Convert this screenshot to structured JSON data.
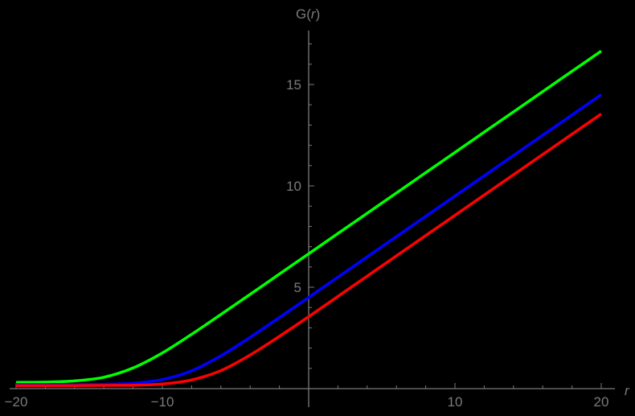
{
  "chart_data": {
    "type": "line",
    "title": "",
    "xlabel": "r",
    "ylabel": "G(r)",
    "xlim": [
      -20,
      20
    ],
    "ylim": [
      0,
      17.5
    ],
    "grid": false,
    "legend": null,
    "x_ticks": [
      -20,
      -10,
      10,
      20
    ],
    "x_tick_labels": [
      "−20",
      "−10",
      "10",
      "20"
    ],
    "y_ticks": [
      5,
      10,
      15
    ],
    "y_tick_labels": [
      "5",
      "10",
      "15"
    ],
    "x": [
      -20,
      -18,
      -16,
      -14,
      -12,
      -10,
      -8,
      -6,
      -4,
      -2,
      0,
      2,
      4,
      6,
      8,
      10,
      12,
      14,
      16,
      18,
      20
    ],
    "series": [
      {
        "name": "green",
        "color": "#00ff00",
        "values": [
          0.31,
          0.32,
          0.38,
          0.56,
          1.02,
          1.76,
          2.68,
          3.66,
          4.65,
          5.65,
          6.65,
          7.65,
          8.65,
          9.65,
          10.65,
          11.65,
          12.65,
          13.65,
          14.65,
          15.65,
          16.65
        ]
      },
      {
        "name": "blue",
        "color": "#0000ff",
        "values": [
          0.2,
          0.2,
          0.21,
          0.22,
          0.27,
          0.45,
          0.88,
          1.62,
          2.53,
          3.51,
          4.5,
          5.5,
          6.5,
          7.5,
          8.5,
          9.5,
          10.5,
          11.5,
          12.5,
          13.5,
          14.5
        ]
      },
      {
        "name": "red",
        "color": "#ff0000",
        "values": [
          0.15,
          0.15,
          0.15,
          0.16,
          0.17,
          0.23,
          0.43,
          0.89,
          1.66,
          2.58,
          3.55,
          4.55,
          5.55,
          6.55,
          7.55,
          8.55,
          9.55,
          10.55,
          11.55,
          12.55,
          13.55
        ]
      }
    ]
  },
  "labels": {
    "xlabel": "r",
    "ylabel_prefix": "G(",
    "ylabel_var": "r",
    "ylabel_suffix": ")"
  },
  "colors": {
    "axis": "#7a7a7a",
    "background": "#000000"
  }
}
